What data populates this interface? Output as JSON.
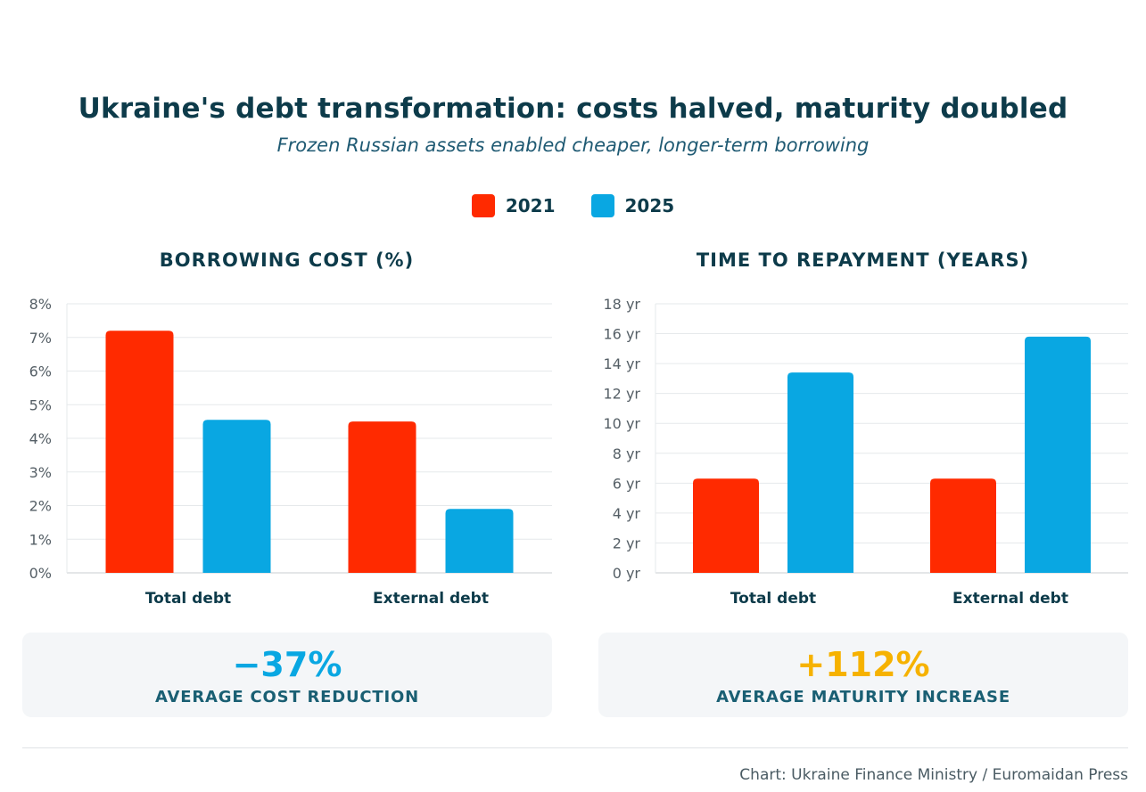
{
  "title": "Ukraine's debt transformation: costs halved, maturity doubled",
  "subtitle": "Frozen Russian assets enabled cheaper, longer-term borrowing",
  "legend": [
    {
      "label": "2021",
      "color": "#ff2a00"
    },
    {
      "label": "2025",
      "color": "#09a7e2"
    }
  ],
  "chart_data": [
    {
      "type": "bar",
      "title": "BORROWING COST (%)",
      "categories": [
        "Total debt",
        "External debt"
      ],
      "series": [
        {
          "name": "2021",
          "values": [
            7.2,
            4.5
          ],
          "color": "#ff2a00"
        },
        {
          "name": "2025",
          "values": [
            4.55,
            1.9
          ],
          "color": "#09a7e2"
        }
      ],
      "ylim": [
        0,
        8
      ],
      "yticks": [
        0,
        1,
        2,
        3,
        4,
        5,
        6,
        7,
        8
      ],
      "ytick_labels": [
        "0%",
        "1%",
        "2%",
        "3%",
        "4%",
        "5%",
        "6%",
        "7%",
        "8%"
      ],
      "grid": true
    },
    {
      "type": "bar",
      "title": "TIME TO REPAYMENT (YEARS)",
      "categories": [
        "Total debt",
        "External debt"
      ],
      "series": [
        {
          "name": "2021",
          "values": [
            6.3,
            6.3
          ],
          "color": "#ff2a00"
        },
        {
          "name": "2025",
          "values": [
            13.4,
            15.8
          ],
          "color": "#09a7e2"
        }
      ],
      "ylim": [
        0,
        18
      ],
      "yticks": [
        0,
        2,
        4,
        6,
        8,
        10,
        12,
        14,
        16,
        18
      ],
      "ytick_labels": [
        "0 yr",
        "2 yr",
        "4 yr",
        "6 yr",
        "8 yr",
        "10 yr",
        "12 yr",
        "14 yr",
        "16 yr",
        "18 yr"
      ],
      "grid": true
    }
  ],
  "stats": [
    {
      "value": "−37%",
      "label": "AVERAGE COST REDUCTION",
      "color": "#09a7e2"
    },
    {
      "value": "+112%",
      "label": "AVERAGE MATURITY INCREASE",
      "color": "#f6b200"
    }
  ],
  "source": "Chart: Ukraine Finance Ministry / Euromaidan Press"
}
